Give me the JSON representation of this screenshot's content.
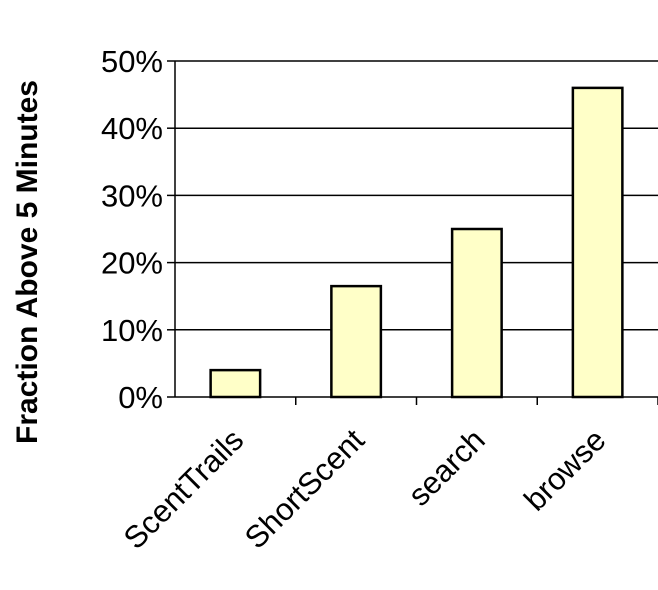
{
  "chart_data": {
    "type": "bar",
    "title": "",
    "xlabel": "",
    "ylabel": "Fraction Above 5 Minutes",
    "categories": [
      "ScentTrails",
      "ShortScent",
      "search",
      "browse"
    ],
    "values": [
      4,
      16.5,
      25,
      46
    ],
    "ylim": [
      0,
      50
    ],
    "yticks": [
      "0%",
      "10%",
      "20%",
      "30%",
      "40%",
      "50%"
    ],
    "y_tick_values": [
      0,
      10,
      20,
      30,
      40,
      50
    ],
    "grid": true,
    "legend": "none",
    "bar_color": "#ffffc8",
    "bar_edge_color": "#000000"
  }
}
